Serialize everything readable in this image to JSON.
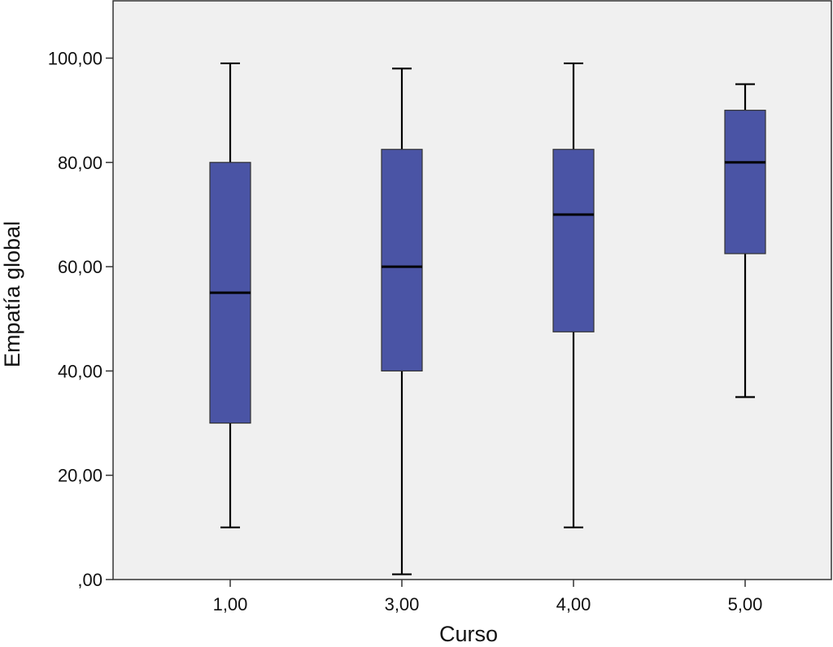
{
  "chart_data": {
    "type": "boxplot",
    "xlabel": "Curso",
    "ylabel": "Empatía global",
    "ylim": [
      0,
      110
    ],
    "yticks": [
      0,
      20,
      40,
      60,
      80,
      100
    ],
    "ytick_labels": [
      ",00",
      "20,00",
      "40,00",
      "60,00",
      "80,00",
      "100,00"
    ],
    "categories": [
      "1,00",
      "3,00",
      "4,00",
      "5,00"
    ],
    "boxes": [
      {
        "min": 10,
        "q1": 30,
        "median": 55,
        "q3": 80,
        "max": 99
      },
      {
        "min": 1,
        "q1": 40,
        "median": 60,
        "q3": 82.5,
        "max": 98
      },
      {
        "min": 10,
        "q1": 47.5,
        "median": 70,
        "q3": 82.5,
        "max": 99
      },
      {
        "min": 35,
        "q1": 62.5,
        "median": 80,
        "q3": 90,
        "max": 95
      }
    ],
    "grid": false,
    "colors": {
      "box_fill": "#4a54a5",
      "plot_bg": "#f0f0f0",
      "line": "#000000"
    }
  }
}
